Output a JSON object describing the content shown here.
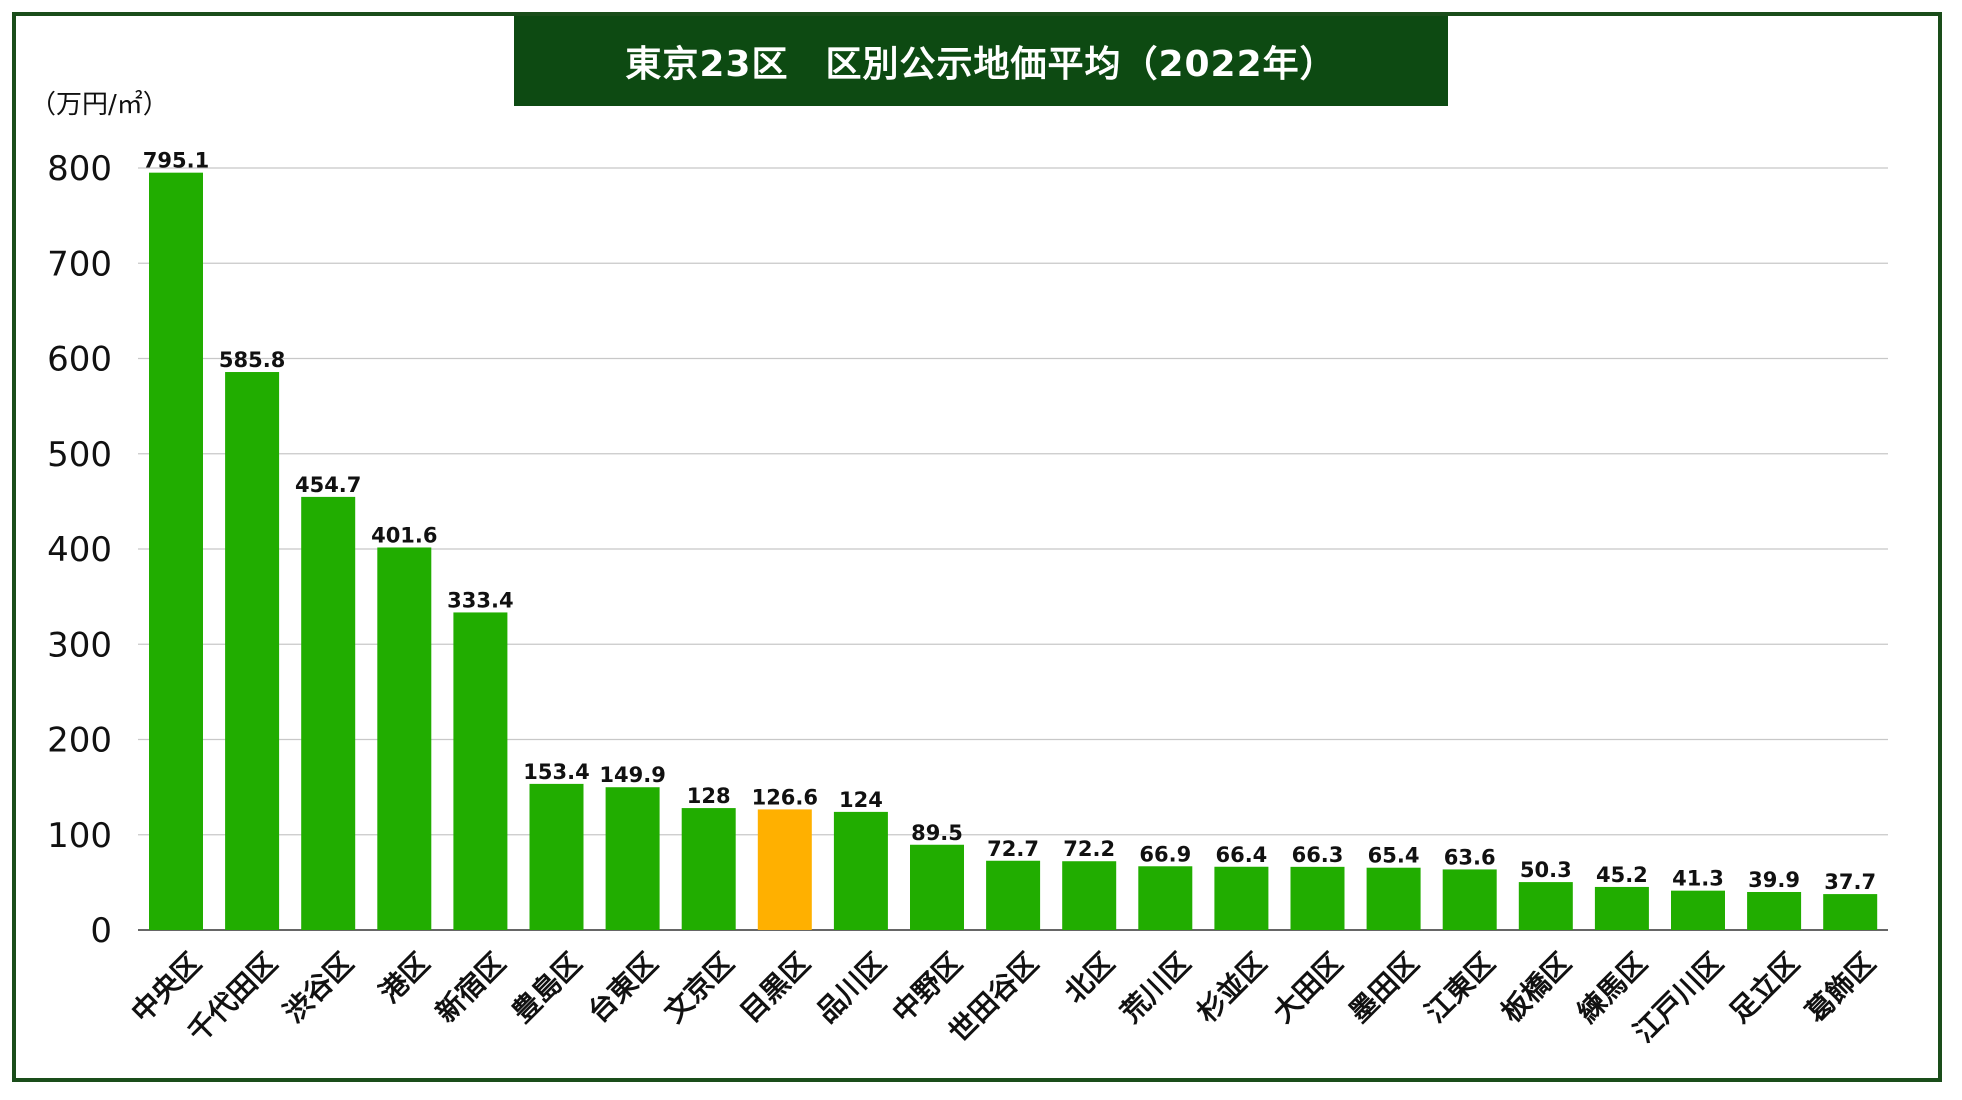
{
  "chart_data": {
    "type": "bar",
    "title": "東京23区　区別公示地価平均（2022年）",
    "ylabel": "（万円/㎡）",
    "ylim": [
      0,
      800
    ],
    "yticks": [
      0,
      100,
      200,
      300,
      400,
      500,
      600,
      700,
      800
    ],
    "grid": true,
    "categories": [
      "中央区",
      "千代田区",
      "渋谷区",
      "港区",
      "新宿区",
      "豊島区",
      "台東区",
      "文京区",
      "目黒区",
      "品川区",
      "中野区",
      "世田谷区",
      "北区",
      "荒川区",
      "杉並区",
      "大田区",
      "墨田区",
      "江東区",
      "板橋区",
      "練馬区",
      "江戸川区",
      "足立区",
      "葛飾区"
    ],
    "values": [
      795.1,
      585.8,
      454.7,
      401.6,
      333.4,
      153.4,
      149.9,
      128,
      126.6,
      124,
      89.5,
      72.7,
      72.2,
      66.9,
      66.4,
      66.3,
      65.4,
      63.6,
      50.3,
      45.2,
      41.3,
      39.9,
      37.7
    ],
    "value_labels": [
      "795.1",
      "585.8",
      "454.7",
      "401.6",
      "333.4",
      "153.4",
      "149.9",
      "128",
      "126.6",
      "124",
      "89.5",
      "72.7",
      "72.2",
      "66.9",
      "66.4",
      "66.3",
      "65.4",
      "63.6",
      "50.3",
      "45.2",
      "41.3",
      "39.9",
      "37.7"
    ],
    "highlight_index": 8,
    "colors": {
      "bar": "#21ad00",
      "highlight": "#ffb000",
      "grid": "#c8c8c8",
      "title_bg": "#0d4a12",
      "frame": "#1a4d1a"
    }
  }
}
